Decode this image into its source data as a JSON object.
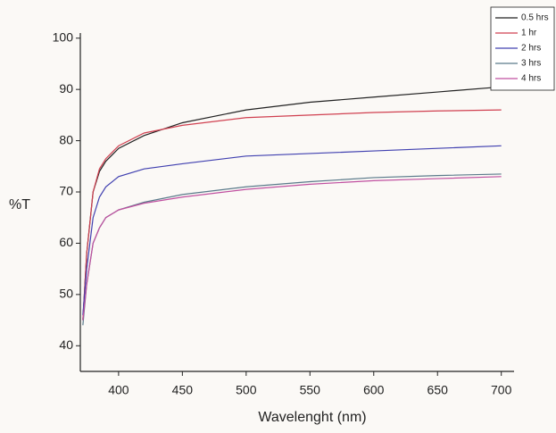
{
  "chart_data": {
    "type": "line",
    "xlabel": "Wavelenght (nm)",
    "ylabel": "%T",
    "x": [
      372,
      375,
      380,
      385,
      390,
      400,
      420,
      450,
      500,
      550,
      600,
      650,
      700
    ],
    "series": [
      {
        "name": "0.5 hrs",
        "color": "#222222",
        "values": [
          45,
          58,
          70,
          74,
          76,
          78.5,
          81,
          83.5,
          86,
          87.5,
          88.5,
          89.5,
          90.5
        ]
      },
      {
        "name": "1 hr",
        "color": "#d04050",
        "values": [
          45,
          58,
          70,
          74.5,
          76.5,
          79,
          81.5,
          83,
          84.5,
          85,
          85.5,
          85.8,
          86
        ]
      },
      {
        "name": "2 hrs",
        "color": "#4040b0",
        "values": [
          46,
          55,
          65,
          69,
          71,
          73,
          74.5,
          75.5,
          77,
          77.5,
          78,
          78.5,
          79
        ]
      },
      {
        "name": "3 hrs",
        "color": "#5a7a8a",
        "values": [
          44,
          52,
          60,
          63,
          65,
          66.5,
          68,
          69.5,
          71,
          72,
          72.8,
          73.2,
          73.5
        ]
      },
      {
        "name": "4 hrs",
        "color": "#c050a0",
        "values": [
          45,
          52,
          60,
          63,
          65,
          66.5,
          67.8,
          69,
          70.5,
          71.5,
          72.2,
          72.6,
          73
        ]
      }
    ],
    "xlim": [
      370,
      710
    ],
    "xticks": [
      400,
      450,
      500,
      550,
      600,
      650,
      700
    ],
    "ylim": [
      35,
      101
    ],
    "yticks": [
      40,
      50,
      60,
      70,
      80,
      90,
      100
    ],
    "grid": false,
    "legend": "upper right"
  }
}
